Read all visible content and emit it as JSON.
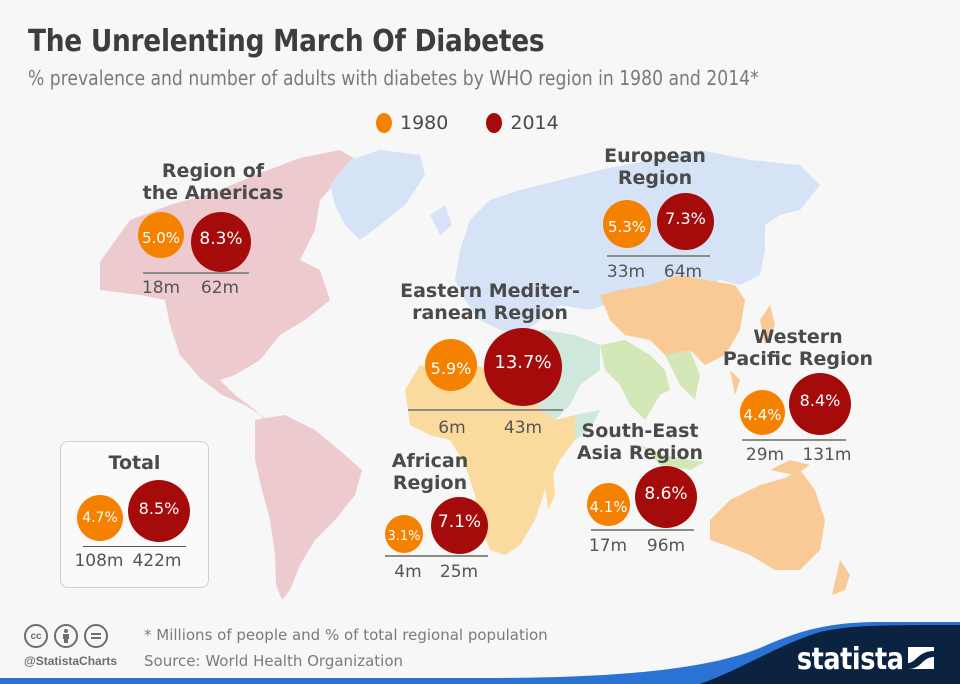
{
  "header": {
    "title": "The Unrelenting March Of Diabetes",
    "subtitle": "% prevalence and number of adults with diabetes by WHO region in 1980 and 2014*"
  },
  "legend": [
    {
      "label": "1980",
      "color": "#f58100"
    },
    {
      "label": "2014",
      "color": "#a50b0b"
    }
  ],
  "colors": {
    "bubble_1980": "#f58100",
    "bubble_2014": "#a50b0b",
    "americas_land": "#edcacd",
    "europe_land": "#d6e3f6",
    "eastern_med_land": "#cfe8dc",
    "africa_land": "#fbdb9d",
    "south_east_asia_land": "#d3e8b6",
    "western_pacific_land": "#f9c996",
    "brand_navy": "#0b2340",
    "brand_blue": "#2a72d4"
  },
  "chart_data": {
    "type": "bubble-map",
    "title": "The Unrelenting March Of Diabetes",
    "subtitle": "% prevalence and number of adults with diabetes by WHO region in 1980 and 2014*",
    "series_labels": [
      "1980",
      "2014"
    ],
    "regions": [
      {
        "id": "americas",
        "name_lines": [
          "Region of",
          "the Americas"
        ],
        "prevalence_1980": "5.0%",
        "prevalence_2014": "8.3%",
        "count_1980": "18m",
        "count_2014": "62m"
      },
      {
        "id": "europe",
        "name_lines": [
          "European",
          "Region"
        ],
        "prevalence_1980": "5.3%",
        "prevalence_2014": "7.3%",
        "count_1980": "33m",
        "count_2014": "64m"
      },
      {
        "id": "eastern_med",
        "name_lines": [
          "Eastern Mediter-",
          "ranean Region"
        ],
        "prevalence_1980": "5.9%",
        "prevalence_2014": "13.7%",
        "count_1980": "6m",
        "count_2014": "43m"
      },
      {
        "id": "western_pacific",
        "name_lines": [
          "Western",
          "Pacific Region"
        ],
        "prevalence_1980": "4.4%",
        "prevalence_2014": "8.4%",
        "count_1980": "29m",
        "count_2014": "131m"
      },
      {
        "id": "south_east_asia",
        "name_lines": [
          "South-East",
          "Asia Region"
        ],
        "prevalence_1980": "4.1%",
        "prevalence_2014": "8.6%",
        "count_1980": "17m",
        "count_2014": "96m"
      },
      {
        "id": "africa",
        "name_lines": [
          "African",
          "Region"
        ],
        "prevalence_1980": "3.1%",
        "prevalence_2014": "7.1%",
        "count_1980": "4m",
        "count_2014": "25m"
      }
    ],
    "total": {
      "name": "Total",
      "prevalence_1980": "4.7%",
      "prevalence_2014": "8.5%",
      "count_1980": "108m",
      "count_2014": "422m"
    }
  },
  "footer": {
    "note": "* Millions of people and % of total regional population",
    "source": "Source: World Health Organization",
    "handle": "@StatistaCharts",
    "license_icons": [
      "cc",
      "by",
      "nd"
    ],
    "brand": "statista"
  }
}
